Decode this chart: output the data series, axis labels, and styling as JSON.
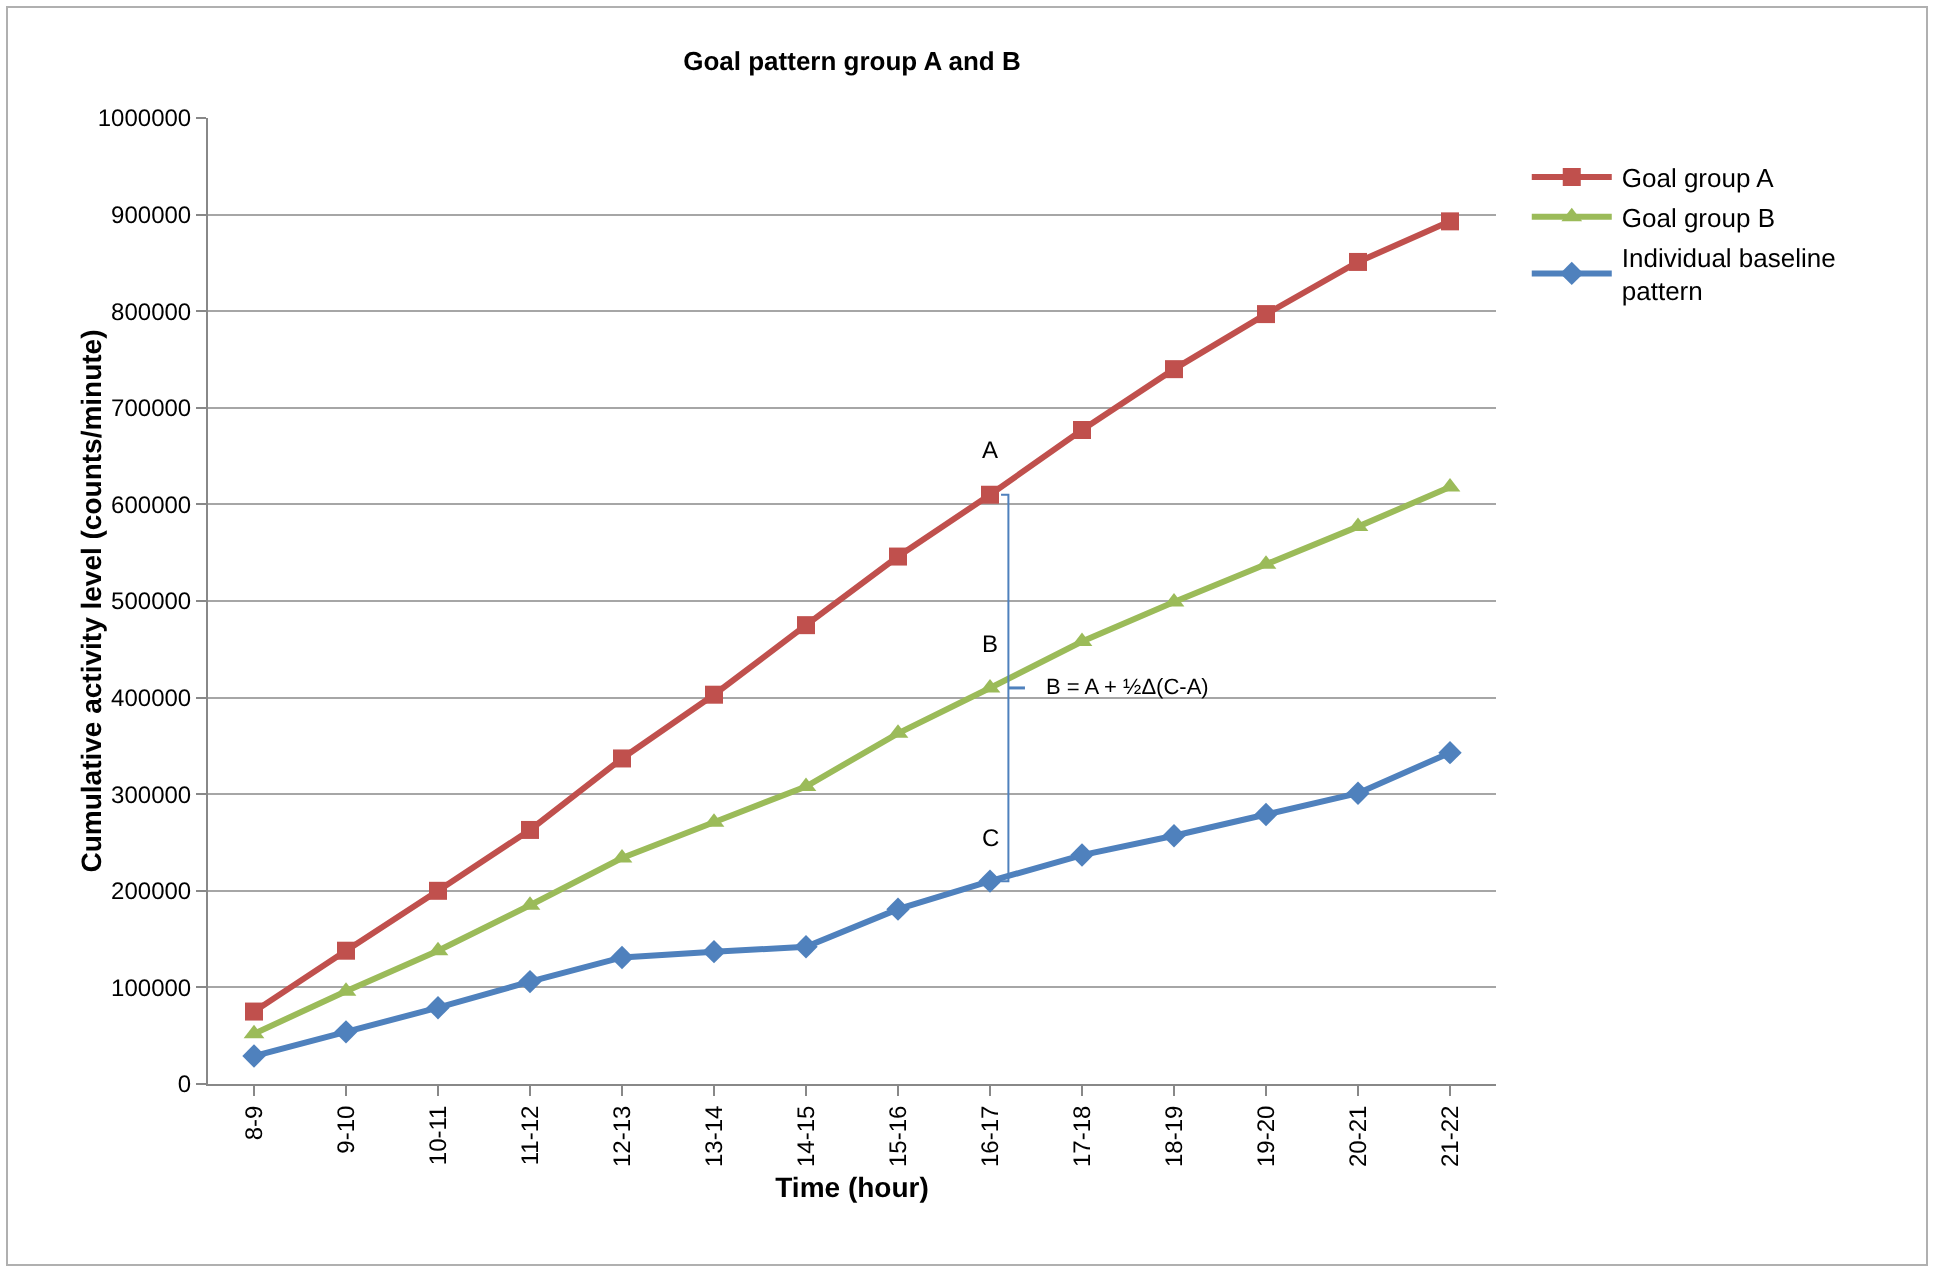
{
  "chart_data": {
    "type": "line",
    "title": "Goal pattern group A and B",
    "xlabel": "Time (hour)",
    "ylabel": "Cumulative activity level (counts/minute)",
    "categories": [
      "8-9",
      "9-10",
      "10-11",
      "11-12",
      "12-13",
      "13-14",
      "14-15",
      "15-16",
      "16-17",
      "17-18",
      "18-19",
      "19-20",
      "20-21",
      "21-22"
    ],
    "series": [
      {
        "name": "Goal group A",
        "color": "#c0504d",
        "marker": "square",
        "values": [
          75000,
          138000,
          200000,
          263000,
          337000,
          403000,
          475000,
          546000,
          610000,
          677000,
          740000,
          797000,
          851000,
          893000
        ]
      },
      {
        "name": "Goal group B",
        "color": "#9bbb59",
        "marker": "triangle",
        "values": [
          52000,
          96000,
          138000,
          185000,
          234000,
          271000,
          308000,
          363000,
          410000,
          458000,
          499000,
          538000,
          577000,
          618000
        ]
      },
      {
        "name": "Individual baseline pattern",
        "color": "#4f81bd",
        "marker": "diamond",
        "values": [
          29000,
          54000,
          79000,
          106000,
          131000,
          137000,
          142000,
          181000,
          210000,
          237000,
          257000,
          279000,
          301000,
          343000
        ]
      }
    ],
    "ylim": [
      0,
      1000000
    ],
    "yticks": [
      0,
      100000,
      200000,
      300000,
      400000,
      500000,
      600000,
      700000,
      800000,
      900000,
      1000000
    ],
    "grid": "y",
    "legend": "right",
    "line_style": "solid",
    "annotations": [
      {
        "text": "A",
        "x": "16-17",
        "y": 610000
      },
      {
        "text": "B",
        "x": "16-17",
        "y": 410000
      },
      {
        "text": "C",
        "x": "16-17",
        "y": 210000
      },
      {
        "text": "B = A + ½Δ(C-A)",
        "x": "16-17",
        "y": 410000
      }
    ]
  }
}
